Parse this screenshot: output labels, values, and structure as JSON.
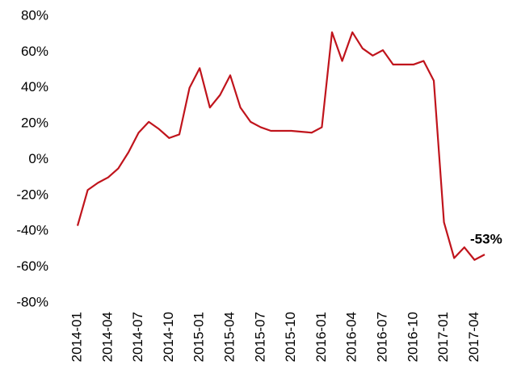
{
  "chart_data": {
    "type": "line",
    "categories": [
      "2014-01",
      null,
      null,
      "2014-04",
      null,
      null,
      "2014-07",
      null,
      null,
      "2014-10",
      null,
      null,
      "2015-01",
      null,
      null,
      "2015-04",
      null,
      null,
      "2015-07",
      null,
      null,
      "2015-10",
      null,
      null,
      "2016-01",
      null,
      null,
      "2016-04",
      null,
      null,
      "2016-07",
      null,
      null,
      "2016-10",
      null,
      null,
      "2017-01",
      null,
      null,
      "2017-04",
      null
    ],
    "values": [
      -37,
      -17,
      -13,
      -10,
      -5,
      4,
      15,
      21,
      17,
      12,
      14,
      40,
      51,
      29,
      36,
      47,
      29,
      21,
      18,
      16,
      16,
      16,
      15.5,
      15,
      18,
      71,
      55,
      71,
      62,
      58,
      61,
      53,
      53,
      53,
      55,
      44,
      -35,
      -55,
      -49,
      -56,
      -53
    ],
    "color": "#c0141c",
    "annotation": "-53%",
    "ylim": [
      -80,
      80
    ],
    "yticks": [
      {
        "value": -80,
        "label": "-80%"
      },
      {
        "value": -60,
        "label": "-60%"
      },
      {
        "value": -40,
        "label": "-40%"
      },
      {
        "value": -20,
        "label": "-20%"
      },
      {
        "value": 0,
        "label": "0%"
      },
      {
        "value": 20,
        "label": "20%"
      },
      {
        "value": 40,
        "label": "40%"
      },
      {
        "value": 60,
        "label": "60%"
      },
      {
        "value": 80,
        "label": "80%"
      }
    ],
    "grid": false
  }
}
